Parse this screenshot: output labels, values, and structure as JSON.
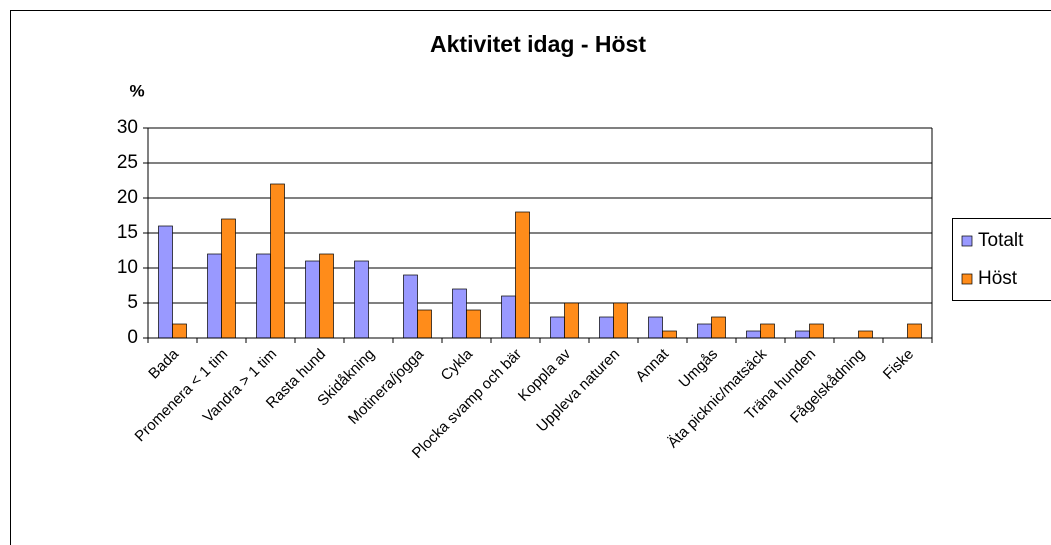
{
  "chart_data": {
    "type": "bar",
    "title": "Aktivitet idag - Höst",
    "y_label": "%",
    "categories": [
      "Bada",
      "Promenera < 1 tim",
      "Vandra > 1 tim",
      "Rasta hund",
      "Skidåkning",
      "Motinera/jogga",
      "Cykla",
      "Plocka svamp och bär",
      "Koppla av",
      "Uppleva naturen",
      "Annat",
      "Umgås",
      "Äta picknic/matsäck",
      "Träna hunden",
      "Fågelskådning",
      "Fiske"
    ],
    "series": [
      {
        "name": "Totalt",
        "color": "#9999ff",
        "values": [
          16,
          12,
          12,
          11,
          11,
          9,
          7,
          6,
          3,
          3,
          3,
          2,
          1,
          1,
          0,
          0
        ]
      },
      {
        "name": "Höst",
        "color": "#ff8c1a",
        "values": [
          2,
          17,
          22,
          12,
          0,
          4,
          4,
          18,
          5,
          5,
          1,
          3,
          2,
          2,
          1,
          2
        ]
      }
    ],
    "ylim": [
      0,
      30
    ],
    "yticks": [
      0,
      5,
      10,
      15,
      20,
      25,
      30
    ],
    "grid": true,
    "legend": "right"
  }
}
